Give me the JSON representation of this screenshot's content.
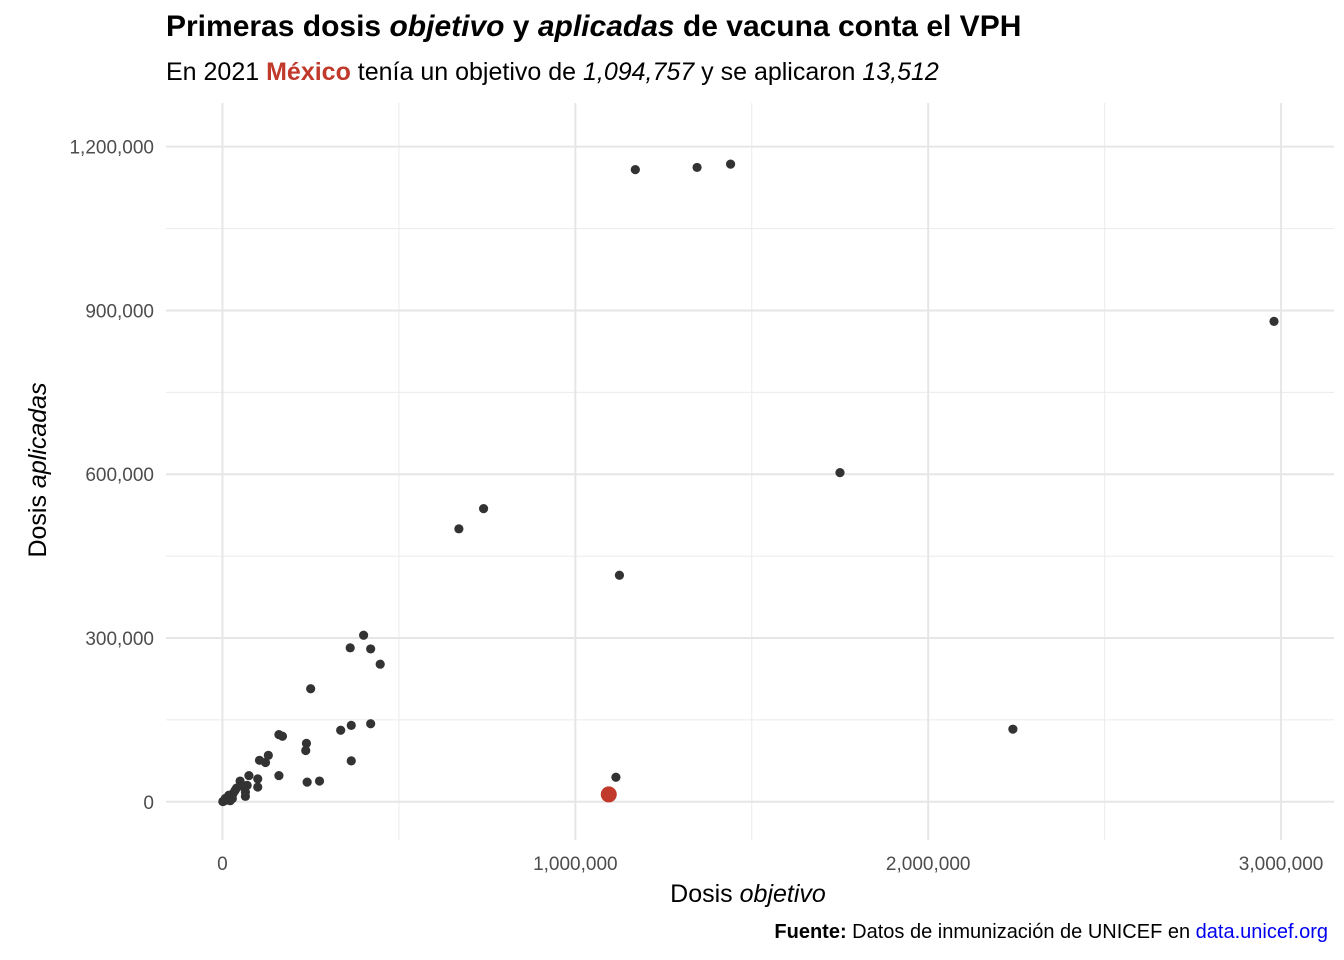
{
  "header": {
    "title_a": "Primeras dosis ",
    "title_b": "objetivo",
    "title_c": " y ",
    "title_d": "aplicadas",
    "title_e": " de vacuna conta el VPH",
    "sub_a": "En 2021 ",
    "sub_country": "México",
    "sub_b": " tenía un objetivo de ",
    "sub_target": "1,094,757",
    "sub_c": " y se aplicaron ",
    "sub_applied": "13,512"
  },
  "caption": {
    "label": "Fuente:",
    "text": " Datos de inmunización de UNICEF en ",
    "link": "data.unicef.org"
  },
  "chart_data": {
    "type": "scatter",
    "xlabel_a": "Dosis ",
    "xlabel_b": "objetivo",
    "ylabel_a": "Dosis ",
    "ylabel_b": "aplicadas",
    "xlim": [
      -160000,
      3150000
    ],
    "ylim": [
      -70000,
      1280000
    ],
    "x_ticks": [
      0,
      1000000,
      2000000,
      3000000
    ],
    "x_tick_labels": [
      "0",
      "1,000,000",
      "2,000,000",
      "3,000,000"
    ],
    "y_ticks": [
      0,
      300000,
      600000,
      900000,
      1200000
    ],
    "y_tick_labels": [
      "0",
      "300,000",
      "600,000",
      "900,000",
      "1,200,000"
    ],
    "grid": true,
    "point_color": "#333333",
    "highlight_color": "#c0392b",
    "highlight": {
      "x": 1094757,
      "y": 13512
    },
    "points": [
      {
        "x": 1170000,
        "y": 1158000
      },
      {
        "x": 1345000,
        "y": 1162000
      },
      {
        "x": 1440000,
        "y": 1168000
      },
      {
        "x": 2980000,
        "y": 880000
      },
      {
        "x": 1750000,
        "y": 603000
      },
      {
        "x": 670000,
        "y": 500000
      },
      {
        "x": 740000,
        "y": 537000
      },
      {
        "x": 1125000,
        "y": 415000
      },
      {
        "x": 2240000,
        "y": 133000
      },
      {
        "x": 1115000,
        "y": 45000
      },
      {
        "x": 400000,
        "y": 305000
      },
      {
        "x": 362000,
        "y": 282000
      },
      {
        "x": 420000,
        "y": 280000
      },
      {
        "x": 447000,
        "y": 252000
      },
      {
        "x": 250000,
        "y": 207000
      },
      {
        "x": 420000,
        "y": 143000
      },
      {
        "x": 365000,
        "y": 140000
      },
      {
        "x": 335000,
        "y": 131000
      },
      {
        "x": 160000,
        "y": 123000
      },
      {
        "x": 170000,
        "y": 120000
      },
      {
        "x": 238000,
        "y": 107000
      },
      {
        "x": 236000,
        "y": 94000
      },
      {
        "x": 130000,
        "y": 85000
      },
      {
        "x": 105000,
        "y": 76000
      },
      {
        "x": 122000,
        "y": 72000
      },
      {
        "x": 365000,
        "y": 75000
      },
      {
        "x": 75000,
        "y": 48000
      },
      {
        "x": 160000,
        "y": 48000
      },
      {
        "x": 100000,
        "y": 42000
      },
      {
        "x": 240000,
        "y": 36000
      },
      {
        "x": 275000,
        "y": 38000
      },
      {
        "x": 50000,
        "y": 38000
      },
      {
        "x": 100000,
        "y": 27000
      },
      {
        "x": 70000,
        "y": 30000
      },
      {
        "x": 60000,
        "y": 28000
      },
      {
        "x": 65000,
        "y": 18000
      },
      {
        "x": 65000,
        "y": 10000
      },
      {
        "x": 40000,
        "y": 25000
      },
      {
        "x": 35000,
        "y": 20000
      },
      {
        "x": 30000,
        "y": 15000
      },
      {
        "x": 25000,
        "y": 10000
      },
      {
        "x": 20000,
        "y": 5000
      },
      {
        "x": 15000,
        "y": 8000
      },
      {
        "x": 10000,
        "y": 3000
      },
      {
        "x": 5000,
        "y": 2000
      },
      {
        "x": 8000,
        "y": 6000
      },
      {
        "x": 12000,
        "y": 4000
      },
      {
        "x": 3000,
        "y": 1000
      },
      {
        "x": 18000,
        "y": 12000
      },
      {
        "x": 28000,
        "y": 6000
      },
      {
        "x": 1000,
        "y": 500
      },
      {
        "x": 22000,
        "y": 2000
      }
    ]
  }
}
